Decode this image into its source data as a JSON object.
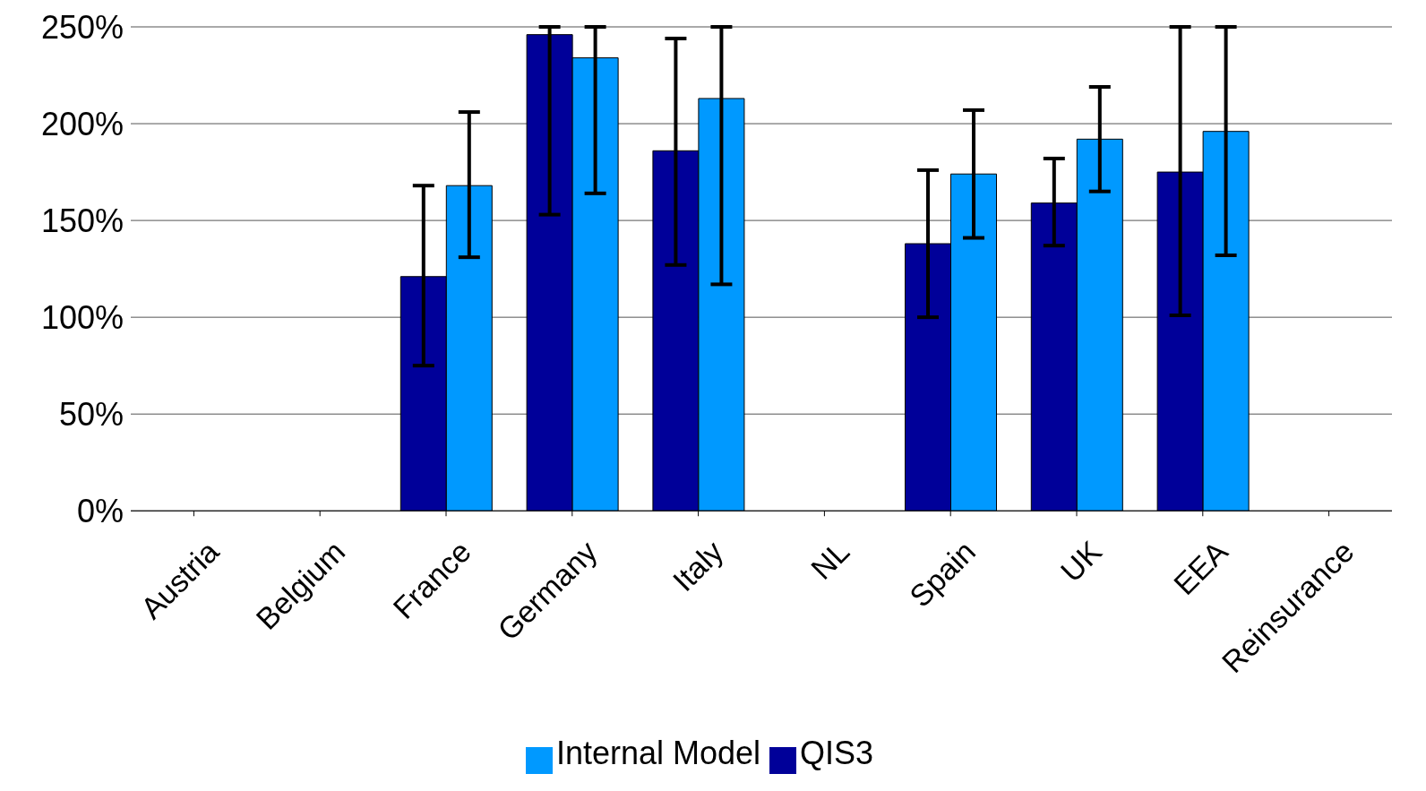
{
  "chart_data": {
    "type": "bar",
    "categories": [
      "Austria",
      "Belgium",
      "France",
      "Germany",
      "Italy",
      "NL",
      "Spain",
      "UK",
      "EEA",
      "Reinsurance"
    ],
    "series": [
      {
        "name": "QIS3",
        "color": "#000099",
        "values": [
          0,
          0,
          121,
          246,
          186,
          0,
          138,
          159,
          175,
          0
        ],
        "errors": [
          null,
          null,
          [
            75,
            168
          ],
          [
            153,
            250
          ],
          [
            127,
            244
          ],
          null,
          [
            100,
            176
          ],
          [
            137,
            182
          ],
          [
            101,
            250
          ],
          null
        ]
      },
      {
        "name": "Internal Model",
        "color": "#0099ff",
        "values": [
          0,
          0,
          168,
          234,
          213,
          0,
          174,
          192,
          196,
          0
        ],
        "errors": [
          null,
          null,
          [
            131,
            206
          ],
          [
            164,
            250
          ],
          [
            117,
            250
          ],
          null,
          [
            141,
            207
          ],
          [
            165,
            219
          ],
          [
            132,
            250
          ],
          null
        ]
      }
    ],
    "ylim": [
      0,
      250
    ],
    "yticks": [
      {
        "value": 0,
        "label": "0%"
      },
      {
        "value": 50,
        "label": "50%"
      },
      {
        "value": 100,
        "label": "100%"
      },
      {
        "value": 150,
        "label": "150%"
      },
      {
        "value": 200,
        "label": "200%"
      },
      {
        "value": 250,
        "label": "250%"
      }
    ],
    "grid": "y",
    "legend": "bottom"
  }
}
